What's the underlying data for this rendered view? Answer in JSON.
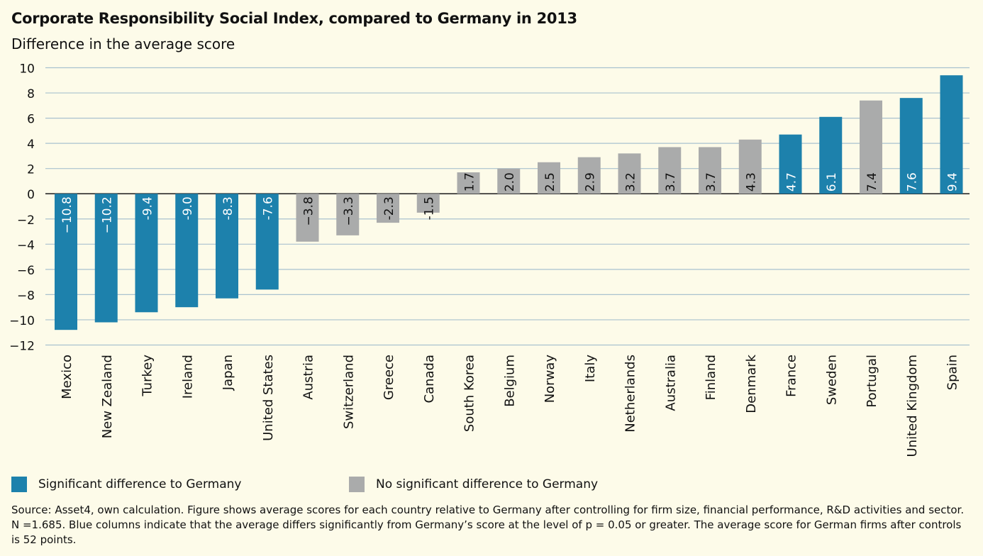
{
  "header": {
    "title": "Corporate Responsibility Social Index, compared to Germany in 2013",
    "subtitle": "Difference in the average score"
  },
  "legend": {
    "significant": {
      "label": "Significant  difference to Germany",
      "color": "#1d81ac"
    },
    "not_significant": {
      "label": "No significant  difference to Germany",
      "color": "#aaabab"
    }
  },
  "footer": {
    "source": "Source: Asset4, own calculation. Figure shows average scores for each country relative to Germany after controlling for firm size, financial performance, R&D activities and sector. N =1.685. Blue columns indicate that the average differs significantly from Germany’s score at the level of p = 0.05 or greater. The average score for German firms after controls is 52 points."
  },
  "chart_data": {
    "type": "bar",
    "title": "Corporate Responsibility Social Index, compared to Germany in 2013",
    "ylabel": "Difference in the average score",
    "ylim": [
      -12,
      10
    ],
    "yticks": [
      10,
      8,
      6,
      4,
      2,
      0,
      -2,
      -4,
      -6,
      -8,
      -10,
      -12
    ],
    "grid": true,
    "legend_position": "bottom-left",
    "categories": [
      "Mexico",
      "New Zealand",
      "Turkey",
      "Ireland",
      "Japan",
      "United States",
      "Austria",
      "Switzerland",
      "Greece",
      "Canada",
      "South Korea",
      "Belgium",
      "Norway",
      "Italy",
      "Netherlands",
      "Australia",
      "Finland",
      "Denmark",
      "France",
      "Sweden",
      "Portugal",
      "United Kingdom",
      "Spain"
    ],
    "values": [
      -10.8,
      -10.2,
      -9.4,
      -9.0,
      -8.3,
      -7.6,
      -3.8,
      -3.3,
      -2.3,
      -1.5,
      1.7,
      2.0,
      2.5,
      2.9,
      3.2,
      3.7,
      3.7,
      4.3,
      4.7,
      6.1,
      7.4,
      7.6,
      9.4
    ],
    "labels": [
      "−10.8",
      "−10.2",
      "-9.4",
      "-9.0",
      "-8.3",
      "-7.6",
      "−3.8",
      "−3.3",
      "-2.3",
      "-1.5",
      "1.7",
      "2.0",
      "2.5",
      "2.9",
      "3.2",
      "3.7",
      "3.7",
      "4.3",
      "4.7",
      "6.1",
      "7.4",
      "7.6",
      "9.4"
    ],
    "significant": [
      true,
      true,
      true,
      true,
      true,
      true,
      false,
      false,
      false,
      false,
      false,
      false,
      false,
      false,
      false,
      false,
      false,
      false,
      true,
      true,
      false,
      true,
      true
    ],
    "colors": {
      "significant": "#1d81ac",
      "not_significant": "#aaabab"
    }
  }
}
